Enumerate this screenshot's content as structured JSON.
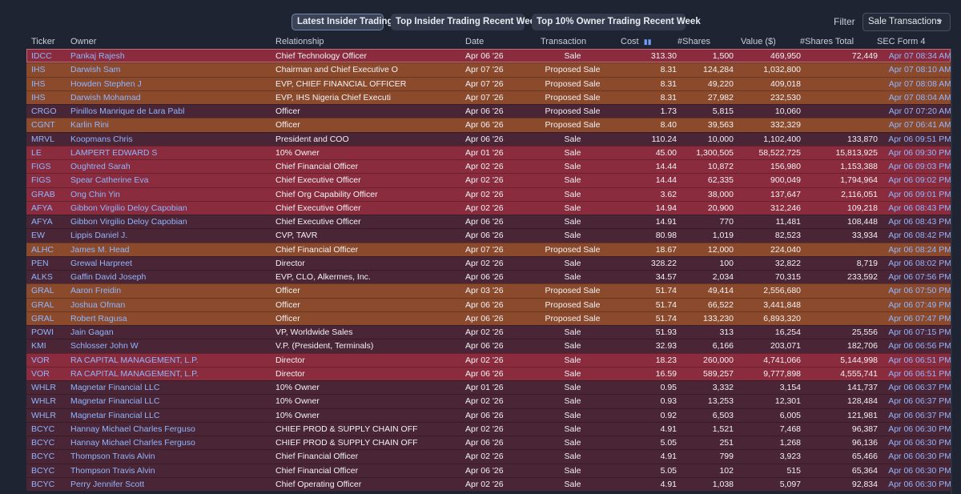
{
  "tabs": [
    {
      "label": "Latest Insider Trading",
      "active": true
    },
    {
      "label": "Top Insider Trading Recent Week",
      "active": false
    },
    {
      "label": "Top 10% Owner Trading Recent Week",
      "active": false
    }
  ],
  "filter": {
    "label": "Filter",
    "value": "Sale Transactions"
  },
  "columns": {
    "ticker": "Ticker",
    "owner": "Owner",
    "relationship": "Relationship",
    "date": "Date",
    "transaction": "Transaction",
    "cost": "Cost",
    "shares": "#Shares",
    "value": "Value ($)",
    "shares_total": "#Shares Total",
    "sec_form": "SEC Form 4"
  },
  "colors": {
    "red": "#8a2c3d",
    "orange": "#8b4a2c",
    "dark": "#4a2535",
    "link": "#8fb6ff"
  },
  "rows": [
    {
      "ticker": "IDCC",
      "owner": "Pankaj Rajesh",
      "relationship": "Chief Technology Officer",
      "date": "Apr 06 '26",
      "transaction": "Sale",
      "cost": "313.30",
      "shares": "1,500",
      "value": "469,950",
      "shares_total": "72,449",
      "sec": "Apr 07 08:34 AM",
      "color": "red"
    },
    {
      "ticker": "IHS",
      "owner": "Darwish Sam",
      "relationship": "Chairman and Chief Executive O",
      "date": "Apr 07 '26",
      "transaction": "Proposed Sale",
      "cost": "8.31",
      "shares": "124,284",
      "value": "1,032,800",
      "shares_total": "",
      "sec": "Apr 07 08:10 AM",
      "color": "orange"
    },
    {
      "ticker": "IHS",
      "owner": "Howden Stephen J",
      "relationship": "EVP, CHIEF FINANCIAL OFFICER",
      "date": "Apr 07 '26",
      "transaction": "Proposed Sale",
      "cost": "8.31",
      "shares": "49,220",
      "value": "409,018",
      "shares_total": "",
      "sec": "Apr 07 08:08 AM",
      "color": "orange"
    },
    {
      "ticker": "IHS",
      "owner": "Darwish Mohamad",
      "relationship": "EVP, IHS Nigeria Chief Executi",
      "date": "Apr 07 '26",
      "transaction": "Proposed Sale",
      "cost": "8.31",
      "shares": "27,982",
      "value": "232,530",
      "shares_total": "",
      "sec": "Apr 07 08:04 AM",
      "color": "orange"
    },
    {
      "ticker": "CRGO",
      "owner": "Pinillos Manrique de Lara Pabl",
      "relationship": "Officer",
      "date": "Apr 06 '26",
      "transaction": "Proposed Sale",
      "cost": "1.73",
      "shares": "5,815",
      "value": "10,060",
      "shares_total": "",
      "sec": "Apr 07 07:20 AM",
      "color": "dark"
    },
    {
      "ticker": "CGNT",
      "owner": "Karlin Rini",
      "relationship": "Officer",
      "date": "Apr 06 '26",
      "transaction": "Proposed Sale",
      "cost": "8.40",
      "shares": "39,563",
      "value": "332,329",
      "shares_total": "",
      "sec": "Apr 07 06:41 AM",
      "color": "orange"
    },
    {
      "ticker": "MRVL",
      "owner": "Koopmans Chris",
      "relationship": "President and COO",
      "date": "Apr 06 '26",
      "transaction": "Sale",
      "cost": "110.24",
      "shares": "10,000",
      "value": "1,102,400",
      "shares_total": "133,870",
      "sec": "Apr 06 09:51 PM",
      "color": "dark"
    },
    {
      "ticker": "LE",
      "owner": "LAMPERT EDWARD S",
      "relationship": "10% Owner",
      "date": "Apr 01 '26",
      "transaction": "Sale",
      "cost": "45.00",
      "shares": "1,300,505",
      "value": "58,522,725",
      "shares_total": "15,813,925",
      "sec": "Apr 06 09:30 PM",
      "color": "red"
    },
    {
      "ticker": "FIGS",
      "owner": "Oughtred Sarah",
      "relationship": "Chief Financial Officer",
      "date": "Apr 02 '26",
      "transaction": "Sale",
      "cost": "14.44",
      "shares": "10,872",
      "value": "156,980",
      "shares_total": "1,153,388",
      "sec": "Apr 06 09:03 PM",
      "color": "red"
    },
    {
      "ticker": "FIGS",
      "owner": "Spear Catherine Eva",
      "relationship": "Chief Executive Officer",
      "date": "Apr 02 '26",
      "transaction": "Sale",
      "cost": "14.44",
      "shares": "62,335",
      "value": "900,049",
      "shares_total": "1,794,964",
      "sec": "Apr 06 09:02 PM",
      "color": "red"
    },
    {
      "ticker": "GRAB",
      "owner": "Ong Chin Yin",
      "relationship": "Chief Org Capability Officer",
      "date": "Apr 02 '26",
      "transaction": "Sale",
      "cost": "3.62",
      "shares": "38,000",
      "value": "137,647",
      "shares_total": "2,116,051",
      "sec": "Apr 06 09:01 PM",
      "color": "red"
    },
    {
      "ticker": "AFYA",
      "owner": "Gibbon Virgilio Deloy Capobian",
      "relationship": "Chief Executive Officer",
      "date": "Apr 02 '26",
      "transaction": "Sale",
      "cost": "14.94",
      "shares": "20,900",
      "value": "312,246",
      "shares_total": "109,218",
      "sec": "Apr 06 08:43 PM",
      "color": "red"
    },
    {
      "ticker": "AFYA",
      "owner": "Gibbon Virgilio Deloy Capobian",
      "relationship": "Chief Executive Officer",
      "date": "Apr 06 '26",
      "transaction": "Sale",
      "cost": "14.91",
      "shares": "770",
      "value": "11,481",
      "shares_total": "108,448",
      "sec": "Apr 06 08:43 PM",
      "color": "dark"
    },
    {
      "ticker": "EW",
      "owner": "Lippis Daniel J.",
      "relationship": "CVP, TAVR",
      "date": "Apr 06 '26",
      "transaction": "Sale",
      "cost": "80.98",
      "shares": "1,019",
      "value": "82,523",
      "shares_total": "33,934",
      "sec": "Apr 06 08:42 PM",
      "color": "dark"
    },
    {
      "ticker": "ALHC",
      "owner": "James M. Head",
      "relationship": "Chief Financial Officer",
      "date": "Apr 07 '26",
      "transaction": "Proposed Sale",
      "cost": "18.67",
      "shares": "12,000",
      "value": "224,040",
      "shares_total": "",
      "sec": "Apr 06 08:24 PM",
      "color": "orange"
    },
    {
      "ticker": "PEN",
      "owner": "Grewal Harpreet",
      "relationship": "Director",
      "date": "Apr 02 '26",
      "transaction": "Sale",
      "cost": "328.22",
      "shares": "100",
      "value": "32,822",
      "shares_total": "8,719",
      "sec": "Apr 06 08:02 PM",
      "color": "dark"
    },
    {
      "ticker": "ALKS",
      "owner": "Gaffin David Joseph",
      "relationship": "EVP, CLO, Alkermes, Inc.",
      "date": "Apr 06 '26",
      "transaction": "Sale",
      "cost": "34.57",
      "shares": "2,034",
      "value": "70,315",
      "shares_total": "233,592",
      "sec": "Apr 06 07:56 PM",
      "color": "dark"
    },
    {
      "ticker": "GRAL",
      "owner": "Aaron Freidin",
      "relationship": "Officer",
      "date": "Apr 03 '26",
      "transaction": "Proposed Sale",
      "cost": "51.74",
      "shares": "49,414",
      "value": "2,556,680",
      "shares_total": "",
      "sec": "Apr 06 07:50 PM",
      "color": "orange"
    },
    {
      "ticker": "GRAL",
      "owner": "Joshua Ofman",
      "relationship": "Officer",
      "date": "Apr 06 '26",
      "transaction": "Proposed Sale",
      "cost": "51.74",
      "shares": "66,522",
      "value": "3,441,848",
      "shares_total": "",
      "sec": "Apr 06 07:49 PM",
      "color": "orange"
    },
    {
      "ticker": "GRAL",
      "owner": "Robert Ragusa",
      "relationship": "Officer",
      "date": "Apr 06 '26",
      "transaction": "Proposed Sale",
      "cost": "51.74",
      "shares": "133,230",
      "value": "6,893,320",
      "shares_total": "",
      "sec": "Apr 06 07:47 PM",
      "color": "orange"
    },
    {
      "ticker": "POWI",
      "owner": "Jain Gagan",
      "relationship": "VP, Worldwide Sales",
      "date": "Apr 02 '26",
      "transaction": "Sale",
      "cost": "51.93",
      "shares": "313",
      "value": "16,254",
      "shares_total": "25,556",
      "sec": "Apr 06 07:15 PM",
      "color": "dark"
    },
    {
      "ticker": "KMI",
      "owner": "Schlosser John W",
      "relationship": "V.P. (President, Terminals)",
      "date": "Apr 06 '26",
      "transaction": "Sale",
      "cost": "32.93",
      "shares": "6,166",
      "value": "203,071",
      "shares_total": "182,706",
      "sec": "Apr 06 06:56 PM",
      "color": "dark"
    },
    {
      "ticker": "VOR",
      "owner": "RA CAPITAL MANAGEMENT, L.P.",
      "relationship": "Director",
      "date": "Apr 02 '26",
      "transaction": "Sale",
      "cost": "18.23",
      "shares": "260,000",
      "value": "4,741,066",
      "shares_total": "5,144,998",
      "sec": "Apr 06 06:51 PM",
      "color": "red"
    },
    {
      "ticker": "VOR",
      "owner": "RA CAPITAL MANAGEMENT, L.P.",
      "relationship": "Director",
      "date": "Apr 06 '26",
      "transaction": "Sale",
      "cost": "16.59",
      "shares": "589,257",
      "value": "9,777,898",
      "shares_total": "4,555,741",
      "sec": "Apr 06 06:51 PM",
      "color": "red"
    },
    {
      "ticker": "WHLR",
      "owner": "Magnetar Financial LLC",
      "relationship": "10% Owner",
      "date": "Apr 01 '26",
      "transaction": "Sale",
      "cost": "0.95",
      "shares": "3,332",
      "value": "3,154",
      "shares_total": "141,737",
      "sec": "Apr 06 06:37 PM",
      "color": "dark"
    },
    {
      "ticker": "WHLR",
      "owner": "Magnetar Financial LLC",
      "relationship": "10% Owner",
      "date": "Apr 02 '26",
      "transaction": "Sale",
      "cost": "0.93",
      "shares": "13,253",
      "value": "12,301",
      "shares_total": "128,484",
      "sec": "Apr 06 06:37 PM",
      "color": "dark"
    },
    {
      "ticker": "WHLR",
      "owner": "Magnetar Financial LLC",
      "relationship": "10% Owner",
      "date": "Apr 06 '26",
      "transaction": "Sale",
      "cost": "0.92",
      "shares": "6,503",
      "value": "6,005",
      "shares_total": "121,981",
      "sec": "Apr 06 06:37 PM",
      "color": "dark"
    },
    {
      "ticker": "BCYC",
      "owner": "Hannay Michael Charles Ferguso",
      "relationship": "CHIEF PROD & SUPPLY CHAIN OFF",
      "date": "Apr 02 '26",
      "transaction": "Sale",
      "cost": "4.91",
      "shares": "1,521",
      "value": "7,468",
      "shares_total": "96,387",
      "sec": "Apr 06 06:30 PM",
      "color": "dark"
    },
    {
      "ticker": "BCYC",
      "owner": "Hannay Michael Charles Ferguso",
      "relationship": "CHIEF PROD & SUPPLY CHAIN OFF",
      "date": "Apr 06 '26",
      "transaction": "Sale",
      "cost": "5.05",
      "shares": "251",
      "value": "1,268",
      "shares_total": "96,136",
      "sec": "Apr 06 06:30 PM",
      "color": "dark"
    },
    {
      "ticker": "BCYC",
      "owner": "Thompson Travis Alvin",
      "relationship": "Chief Financial Officer",
      "date": "Apr 02 '26",
      "transaction": "Sale",
      "cost": "4.91",
      "shares": "799",
      "value": "3,923",
      "shares_total": "65,466",
      "sec": "Apr 06 06:30 PM",
      "color": "dark"
    },
    {
      "ticker": "BCYC",
      "owner": "Thompson Travis Alvin",
      "relationship": "Chief Financial Officer",
      "date": "Apr 06 '26",
      "transaction": "Sale",
      "cost": "5.05",
      "shares": "102",
      "value": "515",
      "shares_total": "65,364",
      "sec": "Apr 06 06:30 PM",
      "color": "dark"
    },
    {
      "ticker": "BCYC",
      "owner": "Perry Jennifer Scott",
      "relationship": "Chief Operating Officer",
      "date": "Apr 02 '26",
      "transaction": "Sale",
      "cost": "4.91",
      "shares": "1,038",
      "value": "5,097",
      "shares_total": "92,834",
      "sec": "Apr 06 06:30 PM",
      "color": "dark"
    }
  ]
}
